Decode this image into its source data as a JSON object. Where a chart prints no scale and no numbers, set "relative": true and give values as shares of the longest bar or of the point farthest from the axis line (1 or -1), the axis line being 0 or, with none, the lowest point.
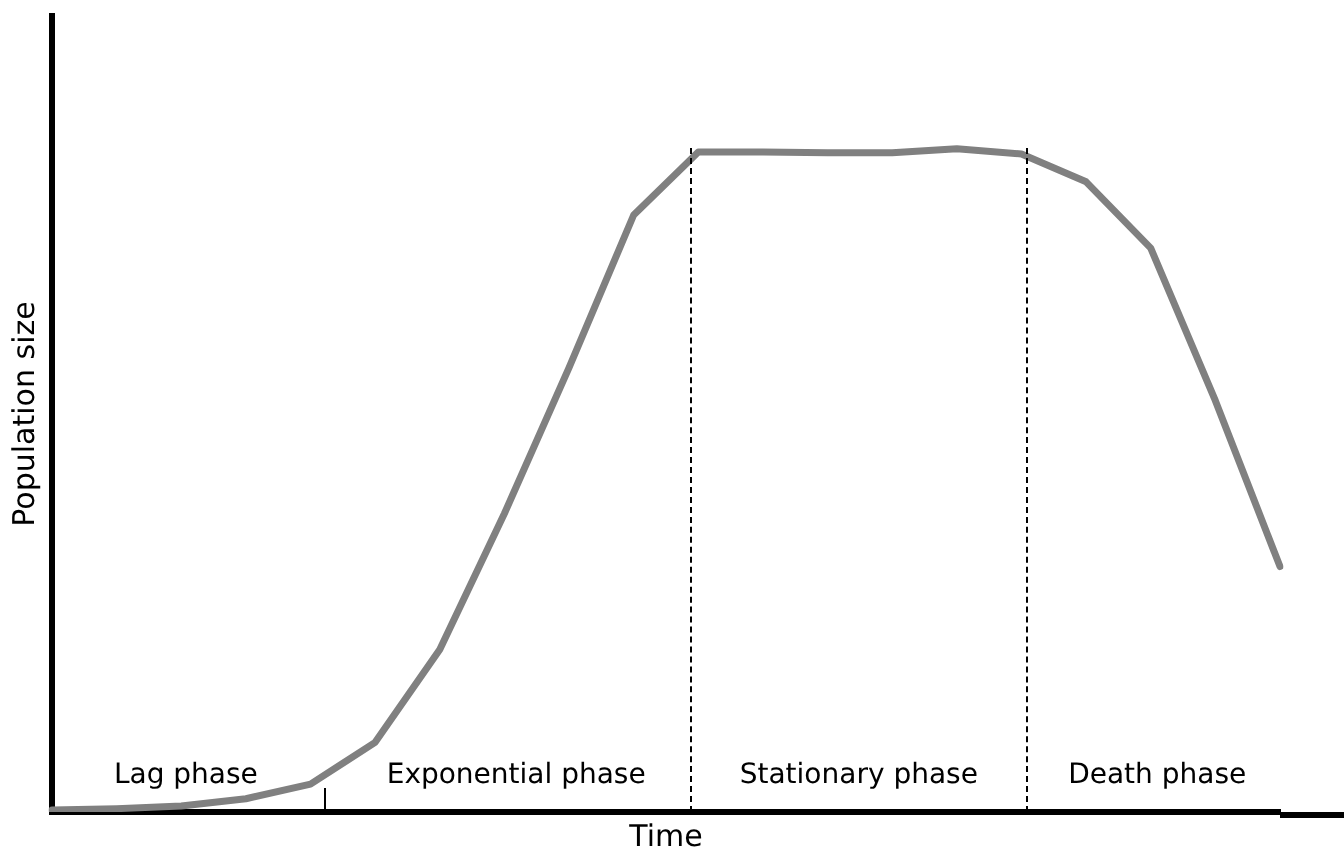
{
  "chart_data": {
    "type": "line",
    "relative": true,
    "xlabel": "Time",
    "ylabel": "Population size",
    "categories": [
      null,
      null,
      null,
      null,
      null,
      null,
      null,
      null,
      null,
      null,
      null,
      null,
      null,
      null,
      null,
      null,
      null,
      null,
      null,
      null
    ],
    "series": [
      {
        "color": "#808080",
        "values": [
          0.003,
          0.005,
          0.009,
          0.02,
          0.042,
          0.105,
          0.245,
          0.45,
          0.67,
          0.9,
          0.995,
          0.995,
          0.994,
          0.994,
          1,
          0.992,
          0.95,
          0.85,
          0.62,
          0.37
        ]
      }
    ],
    "tick_labels": false,
    "grid": false,
    "legend": false,
    "marker": "none",
    "line_style": "solid",
    "annotations": [
      "Lag phase",
      "Exponential phase",
      "Stationary phase",
      "Death phase"
    ]
  }
}
